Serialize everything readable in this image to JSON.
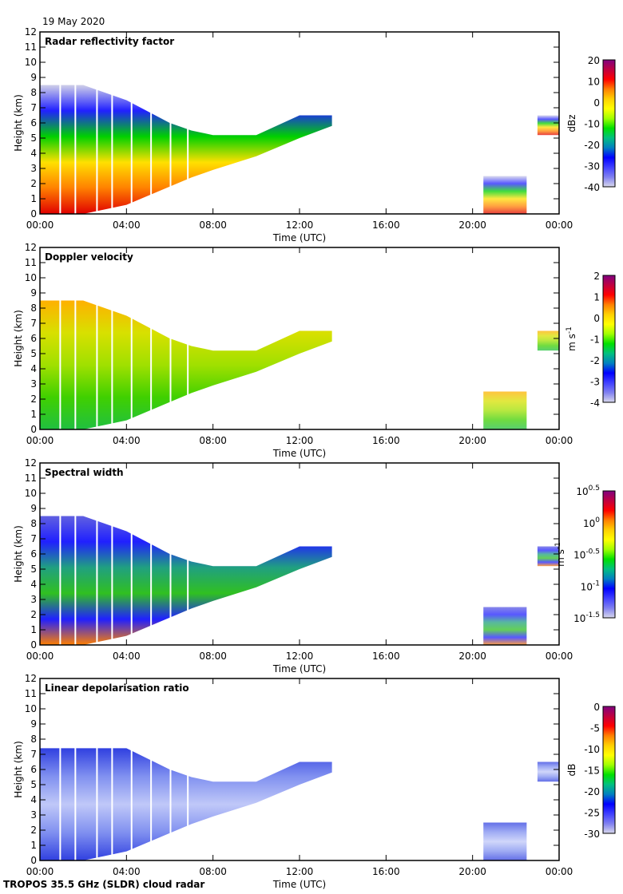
{
  "date": "19 May 2020",
  "footer": "TROPOS 35.5 GHz (SLDR) cloud radar",
  "chart_data": [
    {
      "type": "heatmap",
      "title": "Radar reflectivity factor",
      "xlabel": "Time (UTC)",
      "ylabel": "Height (km)",
      "xticks": [
        "00:00",
        "04:00",
        "08:00",
        "12:00",
        "16:00",
        "20:00",
        "00:00"
      ],
      "yticks": [
        "0",
        "1",
        "2",
        "3",
        "4",
        "5",
        "6",
        "7",
        "8",
        "9",
        "10",
        "11",
        "12"
      ],
      "xlim": [
        0,
        24
      ],
      "ylim": [
        0,
        12
      ],
      "colorbar": {
        "label": "dBz",
        "ticks": [
          "20",
          "10",
          "0",
          "-10",
          "-20",
          "-30",
          "-40"
        ],
        "range": [
          -40,
          20
        ]
      },
      "colors": [
        "#d0d0e8",
        "#2020ff",
        "#00d000",
        "#ffe000",
        "#ff8000",
        "#e00000"
      ]
    },
    {
      "type": "heatmap",
      "title": "Doppler velocity",
      "xlabel": "Time (UTC)",
      "ylabel": "Height (km)",
      "xticks": [
        "00:00",
        "04:00",
        "08:00",
        "12:00",
        "16:00",
        "20:00",
        "00:00"
      ],
      "yticks": [
        "0",
        "1",
        "2",
        "3",
        "4",
        "5",
        "6",
        "7",
        "8",
        "9",
        "10",
        "11",
        "12"
      ],
      "xlim": [
        0,
        24
      ],
      "ylim": [
        0,
        12
      ],
      "colorbar": {
        "label": "m s",
        "label_sup": "-1",
        "ticks": [
          "2",
          "1",
          "0",
          "-1",
          "-2",
          "-3",
          "-4"
        ],
        "range": [
          -4,
          2
        ]
      },
      "colors": [
        "#ffb000",
        "#d8e000",
        "#a0e000",
        "#40d000",
        "#20c040"
      ]
    },
    {
      "type": "heatmap",
      "title": "Spectral width",
      "xlabel": "Time (UTC)",
      "ylabel": "Height (km)",
      "xticks": [
        "00:00",
        "04:00",
        "08:00",
        "12:00",
        "16:00",
        "20:00",
        "00:00"
      ],
      "yticks": [
        "0",
        "1",
        "2",
        "3",
        "4",
        "5",
        "6",
        "7",
        "8",
        "9",
        "10",
        "11",
        "12"
      ],
      "xlim": [
        0,
        24
      ],
      "ylim": [
        0,
        12
      ],
      "colorbar": {
        "label": "m s",
        "label_sup": "-1",
        "log": true,
        "ticks": [
          "0.5",
          "0",
          "-0.5",
          "-1",
          "-1.5"
        ],
        "tick_base": "10",
        "range": [
          -1.5,
          0.5
        ]
      },
      "colors": [
        "#6060e0",
        "#2020ff",
        "#20a080",
        "#30c020",
        "#2020ff",
        "#ff8000"
      ]
    },
    {
      "type": "heatmap",
      "title": "Linear depolarisation ratio",
      "xlabel": "Time (UTC)",
      "ylabel": "Height (km)",
      "xticks": [
        "00:00",
        "04:00",
        "08:00",
        "12:00",
        "16:00",
        "20:00",
        "00:00"
      ],
      "yticks": [
        "0",
        "1",
        "2",
        "3",
        "4",
        "5",
        "6",
        "7",
        "8",
        "9",
        "10",
        "11",
        "12"
      ],
      "xlim": [
        0,
        24
      ],
      "ylim": [
        0,
        12
      ],
      "colorbar": {
        "label": "dB",
        "ticks": [
          "0",
          "-5",
          "-10",
          "-15",
          "-20",
          "-25",
          "-30"
        ],
        "range": [
          -30,
          0
        ]
      },
      "colors": [
        "#3040e0",
        "#8090f0",
        "#c0c8f8",
        "#8090f0",
        "#3040e0"
      ]
    }
  ],
  "cloud_extent": {
    "main": {
      "time_h": [
        0,
        2,
        4,
        6,
        7,
        8,
        10,
        12,
        13.5
      ],
      "top_km": [
        8.5,
        8.5,
        7.5,
        6,
        5.5,
        5.2,
        5.2,
        6.5,
        6.5
      ],
      "base_km": [
        0,
        0,
        0.6,
        1.8,
        2.4,
        2.9,
        3.8,
        5,
        5.8
      ]
    },
    "late": [
      {
        "t0": 20.5,
        "t1": 22.5,
        "base_km": 0,
        "top_km": 2.5
      },
      {
        "t0": 23,
        "t1": 24,
        "base_km": 5.2,
        "top_km": 6.5
      }
    ]
  }
}
